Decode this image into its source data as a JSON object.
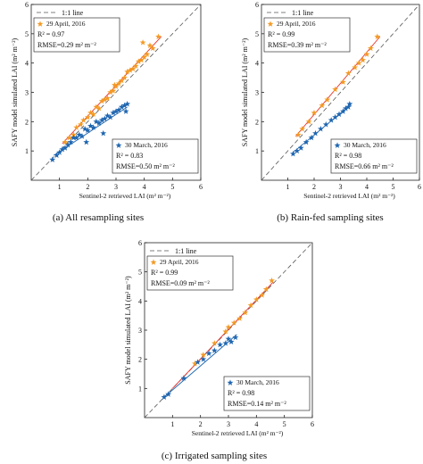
{
  "figure": {
    "panels": [
      {
        "caption": "(a) All resampling sites"
      },
      {
        "caption": "(b) Rain-fed sampling sites"
      },
      {
        "caption": "(c) Irrigated sampling sites"
      }
    ]
  },
  "chart_data": [
    {
      "type": "scatter",
      "xlabel": "Sentinel-2 retrieved LAI  (m² m⁻²)",
      "ylabel": "SAFY model simulated LAI  (m² m⁻²)",
      "xlim": [
        0,
        6
      ],
      "ylim": [
        0,
        6
      ],
      "xticks": [
        "1",
        "2",
        "3",
        "4",
        "5",
        "6"
      ],
      "yticks": [
        "1",
        "2",
        "3",
        "4",
        "5",
        "6"
      ],
      "reference_line": "1:1 line",
      "colors": {
        "april": "#f39a25",
        "march": "#1f66b0",
        "ref": "#555555",
        "fit_april": "#e8322a"
      },
      "series": [
        {
          "name": "29 April, 2016",
          "stats": {
            "r2": "R² = 0.97",
            "rmse": "RMSE=0.29  m² m⁻²"
          },
          "fit": [
            [
              1.1,
              1.25
            ],
            [
              4.6,
              4.9
            ]
          ],
          "x": [
            1.2,
            1.35,
            1.5,
            1.6,
            1.75,
            1.85,
            2.0,
            2.1,
            2.2,
            2.3,
            2.4,
            2.5,
            2.6,
            2.7,
            2.8,
            2.9,
            3.0,
            3.1,
            3.2,
            3.3,
            3.4,
            3.5,
            3.6,
            3.7,
            3.8,
            3.9,
            4.0,
            4.1,
            4.2,
            4.3,
            4.5,
            3.95,
            2.95
          ],
          "y": [
            1.3,
            1.45,
            1.55,
            1.8,
            1.9,
            2.05,
            2.15,
            2.3,
            2.25,
            2.5,
            2.45,
            2.7,
            2.75,
            2.8,
            3.0,
            3.05,
            3.2,
            3.3,
            3.4,
            3.5,
            3.7,
            3.75,
            3.8,
            3.9,
            4.05,
            4.1,
            4.2,
            4.3,
            4.6,
            4.5,
            4.9,
            4.7,
            3.25
          ]
        },
        {
          "name": "30 March, 2016",
          "stats": {
            "r2": "R² = 0.83",
            "rmse": "RMSE=0.50  m² m⁻²"
          },
          "fit": [
            [
              0.8,
              0.85
            ],
            [
              3.4,
              2.5
            ]
          ],
          "x": [
            0.75,
            0.9,
            1.0,
            1.1,
            1.2,
            1.3,
            1.4,
            1.5,
            1.6,
            1.7,
            1.8,
            1.9,
            2.0,
            2.1,
            2.2,
            2.3,
            2.4,
            2.5,
            2.6,
            2.7,
            2.8,
            2.9,
            3.0,
            3.1,
            3.2,
            3.3,
            3.35,
            3.4,
            2.55,
            1.95
          ],
          "y": [
            0.7,
            0.85,
            0.95,
            1.05,
            1.1,
            1.2,
            1.3,
            1.45,
            1.45,
            1.55,
            1.5,
            1.75,
            1.7,
            1.85,
            1.8,
            2.0,
            1.95,
            2.05,
            2.1,
            2.2,
            2.15,
            2.3,
            2.35,
            2.4,
            2.5,
            2.55,
            2.35,
            2.6,
            1.6,
            1.3
          ]
        }
      ]
    },
    {
      "type": "scatter",
      "xlabel": "Sentinel-2 retrieved LAI  (m² m⁻²)",
      "ylabel": "SAFY model simulated LAI  (m² m⁻²)",
      "xlim": [
        0,
        6
      ],
      "ylim": [
        0,
        6
      ],
      "xticks": [
        "1",
        "2",
        "3",
        "4",
        "5",
        "6"
      ],
      "yticks": [
        "1",
        "2",
        "3",
        "4",
        "5",
        "6"
      ],
      "reference_line": "1:1 line",
      "colors": {
        "april": "#f39a25",
        "march": "#1f66b0",
        "ref": "#555555",
        "fit_april": "#e8322a"
      },
      "series": [
        {
          "name": "29 April, 2016",
          "stats": {
            "r2": "R² = 0.99",
            "rmse": "RMSE=0.39  m² m⁻²"
          },
          "fit": [
            [
              1.3,
              1.5
            ],
            [
              4.5,
              4.9
            ]
          ],
          "x": [
            1.4,
            1.55,
            1.8,
            2.0,
            2.3,
            2.5,
            2.8,
            3.1,
            3.3,
            3.55,
            3.7,
            3.85,
            4.0,
            4.15,
            4.4
          ],
          "y": [
            1.55,
            1.75,
            2.0,
            2.3,
            2.55,
            2.75,
            3.1,
            3.35,
            3.65,
            3.85,
            4.0,
            4.1,
            4.3,
            4.5,
            4.9
          ]
        },
        {
          "name": "30 March, 2016",
          "stats": {
            "r2": "R² = 0.98",
            "rmse": "RMSE=0.66  m² m⁻²"
          },
          "fit": [
            [
              1.2,
              0.95
            ],
            [
              3.35,
              2.55
            ]
          ],
          "x": [
            1.2,
            1.35,
            1.5,
            1.7,
            1.9,
            2.05,
            2.25,
            2.45,
            2.65,
            2.8,
            2.95,
            3.1,
            3.2,
            3.3,
            3.35
          ],
          "y": [
            0.9,
            1.0,
            1.1,
            1.3,
            1.45,
            1.6,
            1.75,
            1.9,
            2.05,
            2.15,
            2.25,
            2.35,
            2.45,
            2.5,
            2.6
          ]
        }
      ]
    },
    {
      "type": "scatter",
      "xlabel": "Sentinel-2 retrieved LAI  (m² m⁻²)",
      "ylabel": "SAFY model simulated LAI  (m² m⁻²)",
      "xlim": [
        0,
        6
      ],
      "ylim": [
        0,
        6
      ],
      "xticks": [
        "1",
        "2",
        "3",
        "4",
        "5",
        "6"
      ],
      "yticks": [
        "1",
        "2",
        "3",
        "4",
        "5",
        "6"
      ],
      "reference_line": "1:1 line",
      "colors": {
        "april": "#f39a25",
        "march": "#1f66b0",
        "ref": "#555555",
        "fit_april": "#e8322a"
      },
      "series": [
        {
          "name": "29 April, 2016",
          "stats": {
            "r2": "R² = 0.99",
            "rmse": "RMSE=0.09  m² m⁻²"
          },
          "fit": [
            [
              1.0,
              1.0
            ],
            [
              4.6,
              4.65
            ]
          ],
          "x": [
            1.8,
            2.1,
            2.5,
            2.9,
            3.0,
            3.2,
            3.4,
            3.6,
            3.8,
            4.0,
            4.2,
            4.35,
            4.55
          ],
          "y": [
            1.85,
            2.15,
            2.55,
            2.95,
            3.1,
            3.25,
            3.4,
            3.6,
            3.85,
            4.05,
            4.2,
            4.4,
            4.7
          ]
        },
        {
          "name": "30 March, 2016",
          "stats": {
            "r2": "R² = 0.98",
            "rmse": "RMSE=0.14  m² m⁻²"
          },
          "fit": [
            [
              0.7,
              0.7
            ],
            [
              3.3,
              2.85
            ]
          ],
          "x": [
            0.7,
            0.85,
            1.4,
            1.9,
            2.1,
            2.3,
            2.5,
            2.7,
            2.9,
            3.0,
            3.1,
            3.25
          ],
          "y": [
            0.7,
            0.8,
            1.35,
            1.9,
            2.0,
            2.2,
            2.3,
            2.5,
            2.55,
            2.7,
            2.6,
            2.75
          ]
        }
      ]
    }
  ]
}
